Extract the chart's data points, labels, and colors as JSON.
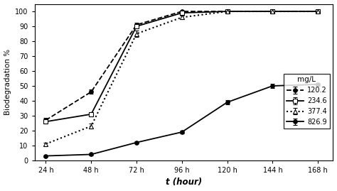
{
  "x": [
    24,
    48,
    72,
    96,
    120,
    144,
    168
  ],
  "series": [
    {
      "label": "120.2",
      "y": [
        27,
        46,
        91,
        100,
        100,
        100,
        100
      ],
      "yerr": [
        1.5,
        1.5,
        1.5,
        0.5,
        0,
        0,
        0
      ],
      "linestyle": "--",
      "marker": "o",
      "markersize": 4,
      "color": "black",
      "markerfacecolor": "black",
      "linewidth": 1.3,
      "dashes": [
        4,
        2
      ]
    },
    {
      "label": "234.6",
      "y": [
        26,
        31,
        90,
        99,
        100,
        100,
        100
      ],
      "yerr": [
        1.5,
        1.5,
        1.5,
        0.5,
        0,
        0,
        0
      ],
      "linestyle": "-",
      "marker": "s",
      "markersize": 4,
      "color": "black",
      "markerfacecolor": "white",
      "linewidth": 1.3,
      "dashes": []
    },
    {
      "label": "377.4",
      "y": [
        11,
        23,
        85,
        96,
        100,
        100,
        100
      ],
      "yerr": [
        1.0,
        1.5,
        2.0,
        1.0,
        0,
        0,
        0
      ],
      "linestyle": ":",
      "marker": "^",
      "markersize": 4,
      "color": "black",
      "markerfacecolor": "white",
      "linewidth": 1.5,
      "dashes": []
    },
    {
      "label": "826.9",
      "y": [
        3,
        4,
        12,
        19,
        39,
        50,
        51
      ],
      "yerr": [
        0.5,
        0.5,
        0.8,
        1.0,
        1.5,
        1.5,
        1.0
      ],
      "linestyle": "-",
      "marker": "o",
      "markersize": 4,
      "color": "black",
      "markerfacecolor": "black",
      "linewidth": 1.3,
      "dashes": []
    }
  ],
  "xlabel": "t (hour)",
  "ylabel": "Biodegradation %",
  "ylim": [
    0,
    105
  ],
  "yticks": [
    0,
    10,
    20,
    30,
    40,
    50,
    60,
    70,
    80,
    90,
    100
  ],
  "xtick_vals": [
    24,
    48,
    72,
    96,
    120,
    144,
    168
  ],
  "xtick_labels": [
    "24 h",
    "48 h",
    "72 h",
    "96 h",
    "120 h",
    "144 h",
    "168 h"
  ],
  "legend_title": "mg/L",
  "background_color": "#ffffff"
}
